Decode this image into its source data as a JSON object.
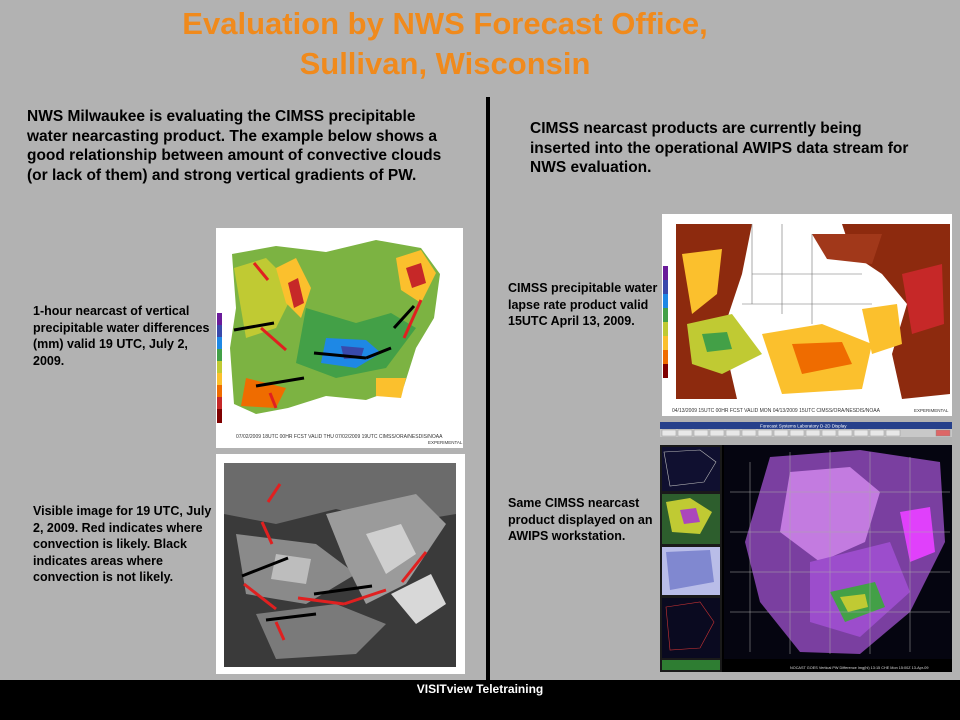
{
  "title": {
    "line1": "Evaluation by NWS Forecast Office,",
    "line2": "Sullivan, Wisconsin"
  },
  "left": {
    "intro": "NWS Milwaukee is evaluating the CIMSS precipitable water nearcasting product.  The example below shows a good relationship between amount of convective clouds (or lack of them) and strong vertical gradients of PW.",
    "caption_nearcast": "1-hour nearcast of vertical precipitable water differences (mm) valid 19 UTC, July 2, 2009.",
    "caption_visible": "Visible image for 19 UTC, July 2, 2009. Red indicates where convection is likely. Black indicates areas where convection is not likely.",
    "map_footer": "07/02/2009 18UTC 00HR FCST VALID THU 07/02/2009 19UTC  CIMSS/ORA/NESDIS/NOAA",
    "map_tag": "EXPERIMENTAL"
  },
  "right": {
    "intro": "CIMSS nearcast products are currently being  inserted into the operational AWIPS data stream for NWS  evaluation.",
    "caption_lapse": "CIMSS precipitable water lapse rate product  valid 15UTC April 13, 2009.",
    "caption_awips": "Same CIMSS nearcast  product displayed on an AWIPS workstation.",
    "map_footer": "04/13/2009 15UTC 00HR FCST VALID MON 04/13/2009 15UTC  CIMSS/ORA/NESDIS/NOAA",
    "map_tag": "EXPERIMENTAL",
    "awips_header": "Forecast Systems Laboratory D-2D Display",
    "awips_status": "NOCAST GOES Vertical PW Difference Img(hl)  13:15  CHE Mon 15:00Z 13-Apr-09"
  },
  "footer": {
    "label": "VISITview Teletraining"
  },
  "colors": {
    "title": "#f08a1c",
    "background": "#b2b2b2",
    "red_line": "#e02020",
    "black_line": "#000000"
  }
}
